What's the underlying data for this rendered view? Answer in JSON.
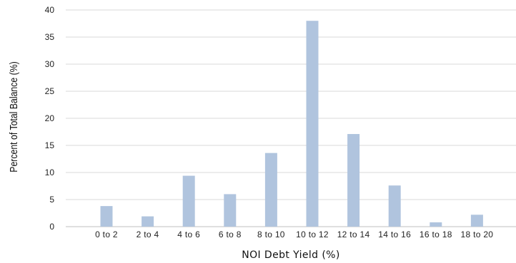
{
  "chart_data": {
    "type": "bar",
    "categories": [
      "0 to 2",
      "2 to 4",
      "4 to 6",
      "6 to 8",
      "8 to 10",
      "10 to 12",
      "12 to 14",
      "14 to 16",
      "16 to 18",
      "18 to 20"
    ],
    "series": [
      {
        "values": [
          3.8,
          1.9,
          9.4,
          6.0,
          13.6,
          38.0,
          17.1,
          7.6,
          0.8,
          2.2
        ]
      }
    ],
    "xlabel": "NOI Debt Yield (%)",
    "ylabel": "Percent of Total Balance (%)",
    "ylim": [
      0,
      40
    ],
    "yticks": [
      0,
      5,
      10,
      15,
      20,
      25,
      30,
      35,
      40
    ],
    "grid": "horizontal",
    "legend": "none",
    "colors": {
      "bar": "#b0c4de",
      "grid": "#d9d9d9"
    }
  }
}
